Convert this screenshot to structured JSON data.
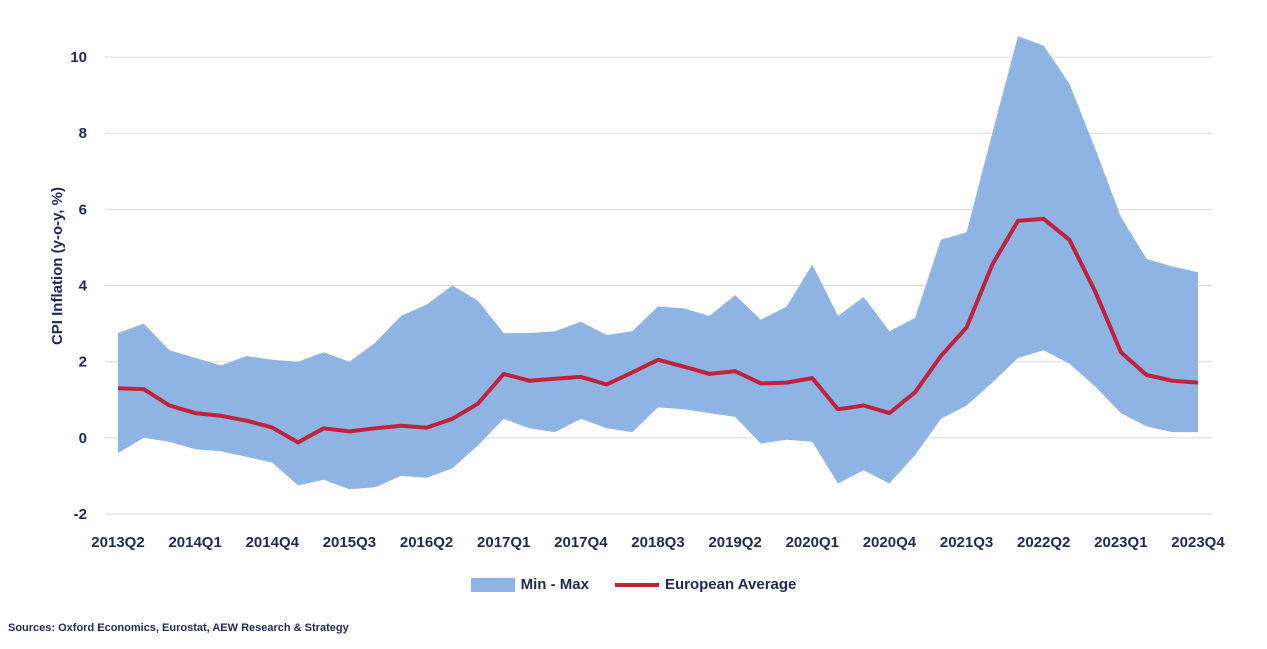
{
  "chart_data": {
    "type": "area",
    "ylabel": "CPI Inflation (y-o-y, %)",
    "ylim": [
      -2,
      11
    ],
    "yticks": [
      -2,
      0,
      2,
      4,
      6,
      8,
      10
    ],
    "grid": true,
    "legend_position": "bottom",
    "x": [
      "2013Q2",
      "2013Q3",
      "2013Q4",
      "2014Q1",
      "2014Q2",
      "2014Q3",
      "2014Q4",
      "2015Q1",
      "2015Q2",
      "2015Q3",
      "2015Q4",
      "2016Q1",
      "2016Q2",
      "2016Q3",
      "2016Q4",
      "2017Q1",
      "2017Q2",
      "2017Q3",
      "2017Q4",
      "2018Q1",
      "2018Q2",
      "2018Q3",
      "2018Q4",
      "2019Q1",
      "2019Q2",
      "2019Q3",
      "2019Q4",
      "2020Q1",
      "2020Q2",
      "2020Q3",
      "2020Q4",
      "2021Q1",
      "2021Q2",
      "2021Q3",
      "2021Q4",
      "2022Q1",
      "2022Q2",
      "2022Q3",
      "2022Q4",
      "2023Q1",
      "2023Q2",
      "2023Q3",
      "2023Q4"
    ],
    "tick_labels": [
      "2013Q2",
      "2014Q1",
      "2014Q4",
      "2015Q3",
      "2016Q2",
      "2017Q1",
      "2017Q4",
      "2018Q3",
      "2019Q2",
      "2020Q1",
      "2020Q4",
      "2021Q3",
      "2022Q2",
      "2023Q1",
      "2023Q4"
    ],
    "series": [
      {
        "name": "Min - Max",
        "kind": "band",
        "color": "#8db4e2",
        "max": [
          2.75,
          3.0,
          2.3,
          2.1,
          1.9,
          2.15,
          2.05,
          2.0,
          2.25,
          2.0,
          2.5,
          3.2,
          3.5,
          4.0,
          3.6,
          2.75,
          2.75,
          2.8,
          3.05,
          2.7,
          2.8,
          3.45,
          3.4,
          3.2,
          3.75,
          3.1,
          3.45,
          4.55,
          3.2,
          3.7,
          2.8,
          3.15,
          5.2,
          5.4,
          8.0,
          10.55,
          10.3,
          9.3,
          7.6,
          5.8,
          4.7,
          4.5,
          4.35
        ],
        "min": [
          -0.4,
          0.0,
          -0.1,
          -0.3,
          -0.35,
          -0.5,
          -0.65,
          -1.25,
          -1.1,
          -1.35,
          -1.3,
          -1.0,
          -1.05,
          -0.8,
          -0.2,
          0.5,
          0.25,
          0.15,
          0.5,
          0.25,
          0.15,
          0.8,
          0.75,
          0.65,
          0.55,
          -0.15,
          -0.05,
          -0.1,
          -1.2,
          -0.85,
          -1.2,
          -0.45,
          0.5,
          0.85,
          1.45,
          2.1,
          2.3,
          1.95,
          1.35,
          0.65,
          0.3,
          0.15,
          0.15
        ]
      },
      {
        "name": "European Average",
        "kind": "line",
        "color": "#c0223b",
        "values": [
          1.3,
          1.28,
          0.85,
          0.65,
          0.58,
          0.45,
          0.27,
          -0.12,
          0.25,
          0.17,
          0.25,
          0.32,
          0.27,
          0.5,
          0.9,
          1.68,
          1.5,
          1.55,
          1.6,
          1.4,
          1.72,
          2.05,
          1.87,
          1.68,
          1.75,
          1.43,
          1.45,
          1.57,
          0.75,
          0.85,
          0.65,
          1.2,
          2.15,
          2.9,
          4.55,
          5.7,
          5.75,
          5.2,
          3.85,
          2.25,
          1.65,
          1.5,
          1.45
        ]
      }
    ]
  },
  "legend": {
    "band_label": "Min - Max",
    "line_label": "European Average"
  },
  "source_note": "Sources: Oxford Economics, Eurostat, AEW Research & Strategy"
}
